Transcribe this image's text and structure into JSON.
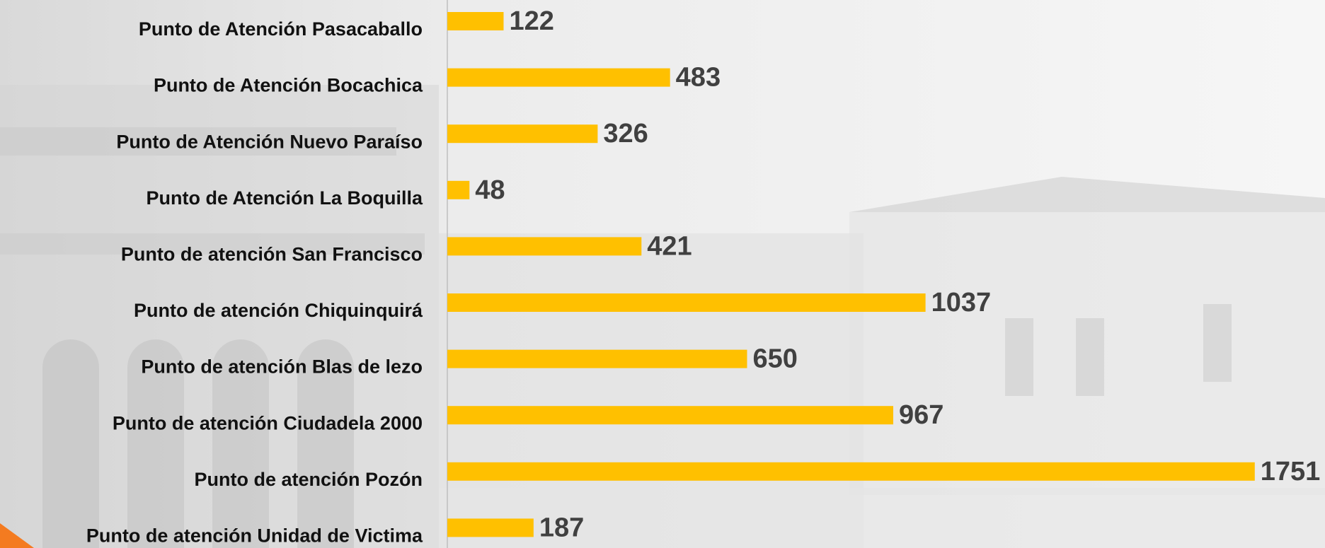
{
  "chart_data": {
    "type": "bar",
    "orientation": "horizontal",
    "categories": [
      "Punto de Atención Pasacaballo",
      "Punto de Atención Bocachica",
      "Punto de Atención Nuevo Paraíso",
      "Punto de Atención La Boquilla",
      "Punto de atención San Francisco",
      "Punto de atención Chiquinquirá",
      "Punto de atención Blas de lezo",
      "Punto de atención Ciudadela 2000",
      "Punto de atención Pozón",
      "Punto de atención Unidad de Victima"
    ],
    "values": [
      122,
      483,
      326,
      48,
      421,
      1037,
      650,
      967,
      1751,
      187
    ],
    "color": "#ffc000"
  }
}
